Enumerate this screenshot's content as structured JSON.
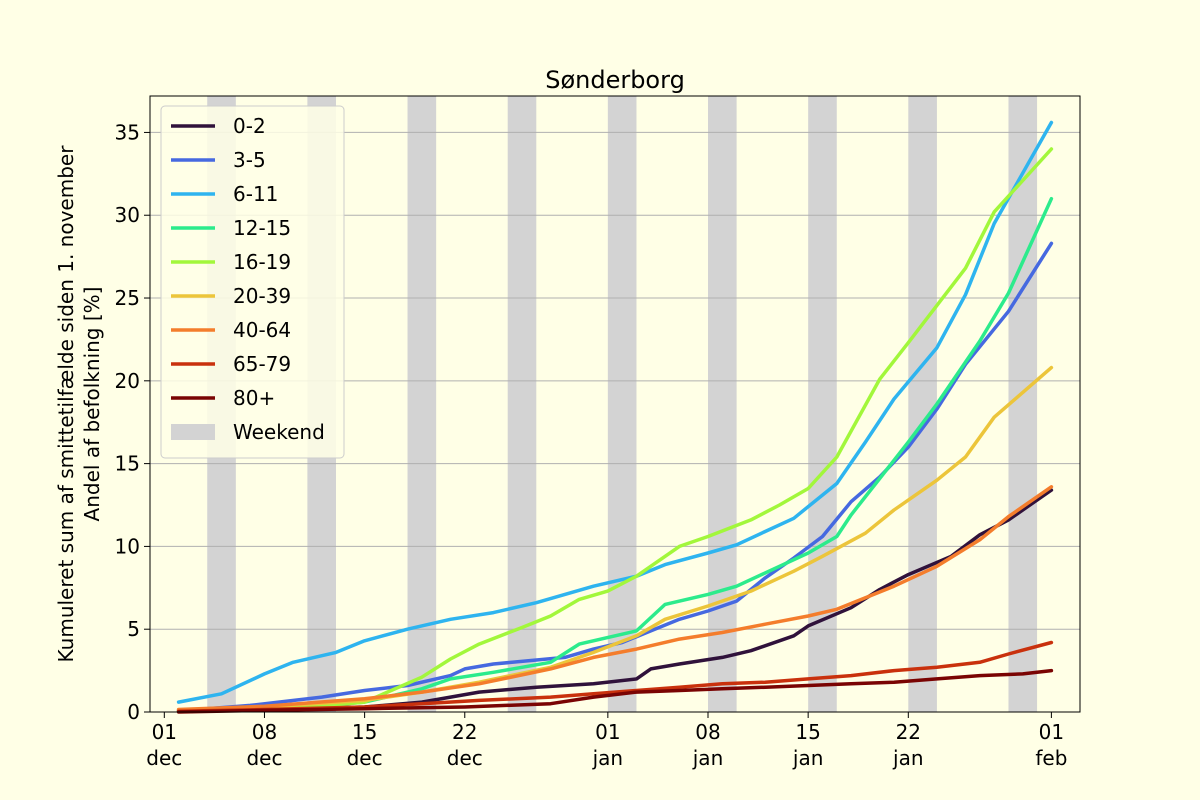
{
  "chart_data": {
    "type": "line",
    "title": "Sønderborg",
    "ylabel_lines": [
      "Kumuleret sum af smittetilfælde siden 1. november",
      "Andel af befolkning [%]"
    ],
    "xlabel": "",
    "x_unit": "date",
    "xlim": [
      "2021-11-30",
      "2022-02-03"
    ],
    "ylim": [
      0,
      37.2
    ],
    "yticks": [
      0,
      5,
      10,
      15,
      20,
      25,
      30,
      35
    ],
    "xticks": [
      {
        "date": "2021-12-01",
        "day": "01",
        "month": "dec"
      },
      {
        "date": "2021-12-08",
        "day": "08",
        "month": "dec"
      },
      {
        "date": "2021-12-15",
        "day": "15",
        "month": "dec"
      },
      {
        "date": "2021-12-22",
        "day": "22",
        "month": "dec"
      },
      {
        "date": "2022-01-01",
        "day": "01",
        "month": "jan"
      },
      {
        "date": "2022-01-08",
        "day": "08",
        "month": "jan"
      },
      {
        "date": "2022-01-15",
        "day": "15",
        "month": "jan"
      },
      {
        "date": "2022-01-22",
        "day": "22",
        "month": "jan"
      },
      {
        "date": "2022-02-01",
        "day": "01",
        "month": "feb"
      }
    ],
    "grid": "horizontal",
    "legend_position": "upper-left",
    "weekend_label": "Weekend",
    "weekend_color": "#d3d3d3",
    "weekends": [
      [
        "2021-12-04",
        "2021-12-05"
      ],
      [
        "2021-12-11",
        "2021-12-12"
      ],
      [
        "2021-12-18",
        "2021-12-19"
      ],
      [
        "2021-12-25",
        "2021-12-26"
      ],
      [
        "2022-01-01",
        "2022-01-02"
      ],
      [
        "2022-01-08",
        "2022-01-09"
      ],
      [
        "2022-01-15",
        "2022-01-16"
      ],
      [
        "2022-01-22",
        "2022-01-23"
      ],
      [
        "2022-01-29",
        "2022-01-30"
      ]
    ],
    "series": [
      {
        "name": "0-2",
        "color": "#30123b",
        "points": [
          [
            "2021-12-02",
            0.05
          ],
          [
            "2021-12-08",
            0.15
          ],
          [
            "2021-12-15",
            0.3
          ],
          [
            "2021-12-19",
            0.6
          ],
          [
            "2021-12-21",
            0.9
          ],
          [
            "2021-12-23",
            1.2
          ],
          [
            "2021-12-27",
            1.5
          ],
          [
            "2021-12-31",
            1.7
          ],
          [
            "2022-01-03",
            2.0
          ],
          [
            "2022-01-04",
            2.6
          ],
          [
            "2022-01-06",
            2.9
          ],
          [
            "2022-01-09",
            3.3
          ],
          [
            "2022-01-11",
            3.7
          ],
          [
            "2022-01-14",
            4.6
          ],
          [
            "2022-01-15",
            5.2
          ],
          [
            "2022-01-18",
            6.3
          ],
          [
            "2022-01-20",
            7.4
          ],
          [
            "2022-01-22",
            8.3
          ],
          [
            "2022-01-25",
            9.4
          ],
          [
            "2022-01-27",
            10.7
          ],
          [
            "2022-01-29",
            11.6
          ],
          [
            "2022-02-01",
            13.4
          ]
        ]
      },
      {
        "name": "3-5",
        "color": "#4669e0",
        "points": [
          [
            "2021-12-02",
            0.1
          ],
          [
            "2021-12-04",
            0.2
          ],
          [
            "2021-12-07",
            0.4
          ],
          [
            "2021-12-09",
            0.6
          ],
          [
            "2021-12-12",
            0.9
          ],
          [
            "2021-12-15",
            1.3
          ],
          [
            "2021-12-18",
            1.6
          ],
          [
            "2021-12-21",
            2.2
          ],
          [
            "2021-12-22",
            2.6
          ],
          [
            "2021-12-24",
            2.9
          ],
          [
            "2021-12-29",
            3.3
          ],
          [
            "2021-12-31",
            3.8
          ],
          [
            "2022-01-02",
            4.2
          ],
          [
            "2022-01-04",
            4.9
          ],
          [
            "2022-01-06",
            5.6
          ],
          [
            "2022-01-08",
            6.1
          ],
          [
            "2022-01-10",
            6.7
          ],
          [
            "2022-01-12",
            8.1
          ],
          [
            "2022-01-14",
            9.3
          ],
          [
            "2022-01-16",
            10.6
          ],
          [
            "2022-01-18",
            12.7
          ],
          [
            "2022-01-20",
            14.2
          ],
          [
            "2022-01-22",
            16.0
          ],
          [
            "2022-01-24",
            18.3
          ],
          [
            "2022-01-26",
            21.0
          ],
          [
            "2022-01-29",
            24.2
          ],
          [
            "2022-02-01",
            28.3
          ]
        ]
      },
      {
        "name": "6-11",
        "color": "#2eb4ef",
        "points": [
          [
            "2021-12-02",
            0.6
          ],
          [
            "2021-12-05",
            1.1
          ],
          [
            "2021-12-08",
            2.3
          ],
          [
            "2021-12-10",
            3.0
          ],
          [
            "2021-12-13",
            3.6
          ],
          [
            "2021-12-15",
            4.3
          ],
          [
            "2021-12-18",
            5.0
          ],
          [
            "2021-12-21",
            5.6
          ],
          [
            "2021-12-24",
            6.0
          ],
          [
            "2021-12-27",
            6.6
          ],
          [
            "2021-12-29",
            7.1
          ],
          [
            "2021-12-31",
            7.6
          ],
          [
            "2022-01-03",
            8.2
          ],
          [
            "2022-01-05",
            8.9
          ],
          [
            "2022-01-08",
            9.6
          ],
          [
            "2022-01-10",
            10.1
          ],
          [
            "2022-01-12",
            10.9
          ],
          [
            "2022-01-14",
            11.7
          ],
          [
            "2022-01-17",
            13.8
          ],
          [
            "2022-01-19",
            16.3
          ],
          [
            "2022-01-21",
            18.9
          ],
          [
            "2022-01-24",
            22.0
          ],
          [
            "2022-01-26",
            25.2
          ],
          [
            "2022-01-28",
            29.5
          ],
          [
            "2022-02-01",
            35.6
          ]
        ]
      },
      {
        "name": "12-15",
        "color": "#2ceb8c",
        "points": [
          [
            "2021-12-02",
            0.05
          ],
          [
            "2021-12-09",
            0.15
          ],
          [
            "2021-12-15",
            0.6
          ],
          [
            "2021-12-19",
            1.4
          ],
          [
            "2021-12-21",
            2.0
          ],
          [
            "2021-12-24",
            2.4
          ],
          [
            "2021-12-28",
            3.0
          ],
          [
            "2021-12-30",
            4.1
          ],
          [
            "2022-01-03",
            4.9
          ],
          [
            "2022-01-05",
            6.5
          ],
          [
            "2022-01-08",
            7.1
          ],
          [
            "2022-01-10",
            7.6
          ],
          [
            "2022-01-13",
            8.8
          ],
          [
            "2022-01-15",
            9.6
          ],
          [
            "2022-01-17",
            10.6
          ],
          [
            "2022-01-18",
            11.9
          ],
          [
            "2022-01-20",
            14.1
          ],
          [
            "2022-01-22",
            16.3
          ],
          [
            "2022-01-24",
            18.6
          ],
          [
            "2022-01-27",
            22.4
          ],
          [
            "2022-01-29",
            25.3
          ],
          [
            "2022-02-01",
            31.0
          ]
        ]
      },
      {
        "name": "16-19",
        "color": "#a2f73b",
        "points": [
          [
            "2021-12-02",
            0.05
          ],
          [
            "2021-12-09",
            0.15
          ],
          [
            "2021-12-15",
            0.6
          ],
          [
            "2021-12-19",
            2.1
          ],
          [
            "2021-12-21",
            3.2
          ],
          [
            "2021-12-23",
            4.1
          ],
          [
            "2021-12-26",
            5.1
          ],
          [
            "2021-12-28",
            5.8
          ],
          [
            "2021-12-30",
            6.8
          ],
          [
            "2022-01-01",
            7.3
          ],
          [
            "2022-01-03",
            8.2
          ],
          [
            "2022-01-06",
            10.0
          ],
          [
            "2022-01-08",
            10.6
          ],
          [
            "2022-01-11",
            11.6
          ],
          [
            "2022-01-13",
            12.5
          ],
          [
            "2022-01-15",
            13.5
          ],
          [
            "2022-01-17",
            15.4
          ],
          [
            "2022-01-20",
            20.1
          ],
          [
            "2022-01-22",
            22.3
          ],
          [
            "2022-01-26",
            26.8
          ],
          [
            "2022-01-28",
            30.2
          ],
          [
            "2022-02-01",
            34.0
          ]
        ]
      },
      {
        "name": "20-39",
        "color": "#ecc53a",
        "points": [
          [
            "2021-12-02",
            0.1
          ],
          [
            "2021-12-08",
            0.3
          ],
          [
            "2021-12-15",
            0.7
          ],
          [
            "2021-12-19",
            1.2
          ],
          [
            "2021-12-23",
            1.8
          ],
          [
            "2021-12-28",
            2.7
          ],
          [
            "2021-12-31",
            3.6
          ],
          [
            "2022-01-03",
            4.6
          ],
          [
            "2022-01-05",
            5.6
          ],
          [
            "2022-01-08",
            6.4
          ],
          [
            "2022-01-11",
            7.3
          ],
          [
            "2022-01-14",
            8.5
          ],
          [
            "2022-01-16",
            9.4
          ],
          [
            "2022-01-19",
            10.8
          ],
          [
            "2022-01-21",
            12.2
          ],
          [
            "2022-01-24",
            14.0
          ],
          [
            "2022-01-26",
            15.4
          ],
          [
            "2022-01-28",
            17.8
          ],
          [
            "2022-02-01",
            20.8
          ]
        ]
      },
      {
        "name": "40-64",
        "color": "#f47d2c",
        "points": [
          [
            "2021-12-02",
            0.15
          ],
          [
            "2021-12-08",
            0.35
          ],
          [
            "2021-12-15",
            0.8
          ],
          [
            "2021-12-19",
            1.2
          ],
          [
            "2021-12-23",
            1.7
          ],
          [
            "2021-12-28",
            2.6
          ],
          [
            "2021-12-31",
            3.3
          ],
          [
            "2022-01-03",
            3.8
          ],
          [
            "2022-01-06",
            4.4
          ],
          [
            "2022-01-09",
            4.8
          ],
          [
            "2022-01-12",
            5.3
          ],
          [
            "2022-01-15",
            5.8
          ],
          [
            "2022-01-17",
            6.2
          ],
          [
            "2022-01-19",
            6.9
          ],
          [
            "2022-01-21",
            7.6
          ],
          [
            "2022-01-24",
            8.8
          ],
          [
            "2022-01-27",
            10.4
          ],
          [
            "2022-01-29",
            11.8
          ],
          [
            "2022-02-01",
            13.6
          ]
        ]
      },
      {
        "name": "65-79",
        "color": "#c9310d",
        "points": [
          [
            "2021-12-02",
            0.05
          ],
          [
            "2021-12-08",
            0.15
          ],
          [
            "2021-12-15",
            0.3
          ],
          [
            "2021-12-19",
            0.5
          ],
          [
            "2021-12-23",
            0.7
          ],
          [
            "2021-12-28",
            0.9
          ],
          [
            "2021-12-31",
            1.1
          ],
          [
            "2022-01-03",
            1.3
          ],
          [
            "2022-01-06",
            1.5
          ],
          [
            "2022-01-09",
            1.7
          ],
          [
            "2022-01-12",
            1.8
          ],
          [
            "2022-01-15",
            2.0
          ],
          [
            "2022-01-18",
            2.2
          ],
          [
            "2022-01-21",
            2.5
          ],
          [
            "2022-01-24",
            2.7
          ],
          [
            "2022-01-27",
            3.0
          ],
          [
            "2022-01-29",
            3.5
          ],
          [
            "2022-02-01",
            4.2
          ]
        ]
      },
      {
        "name": "80+",
        "color": "#7a0403",
        "points": [
          [
            "2021-12-02",
            0.0
          ],
          [
            "2021-12-08",
            0.1
          ],
          [
            "2021-12-15",
            0.2
          ],
          [
            "2021-12-22",
            0.3
          ],
          [
            "2021-12-28",
            0.5
          ],
          [
            "2021-12-31",
            0.9
          ],
          [
            "2022-01-03",
            1.2
          ],
          [
            "2022-01-06",
            1.3
          ],
          [
            "2022-01-09",
            1.4
          ],
          [
            "2022-01-12",
            1.5
          ],
          [
            "2022-01-15",
            1.6
          ],
          [
            "2022-01-18",
            1.7
          ],
          [
            "2022-01-21",
            1.8
          ],
          [
            "2022-01-24",
            2.0
          ],
          [
            "2022-01-27",
            2.2
          ],
          [
            "2022-01-30",
            2.3
          ],
          [
            "2022-02-01",
            2.5
          ]
        ]
      }
    ]
  }
}
